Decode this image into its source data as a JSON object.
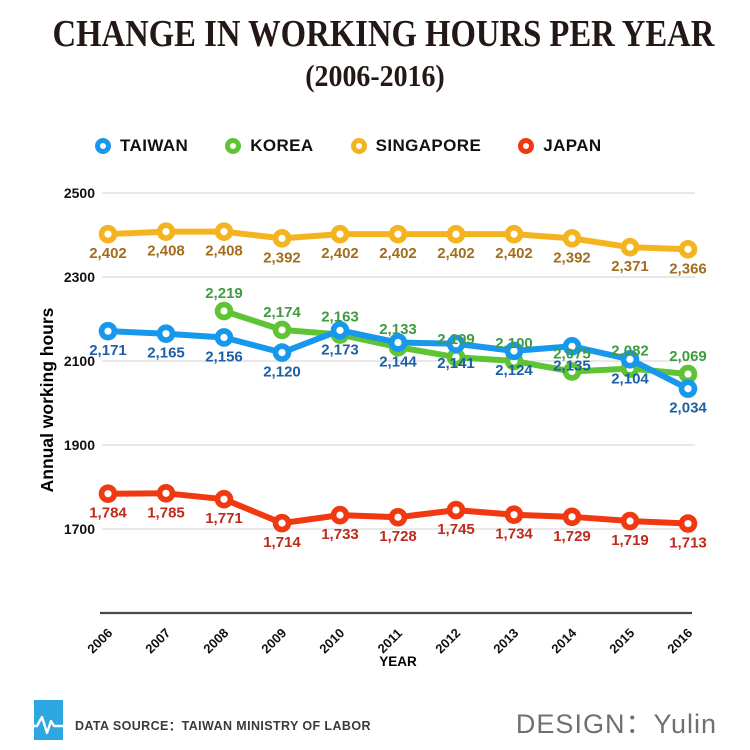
{
  "title": "CHANGE IN WORKING HOURS PER YEAR",
  "subtitle": "(2006-2016)",
  "colors": {
    "title": "#231815",
    "gridline": "#d9d9d9",
    "axis_line": "#4a4a4a",
    "tick_text": "#111111",
    "footer_icon": "#2ea7e0",
    "design_text": "#717071"
  },
  "chart_data": {
    "type": "line",
    "x": [
      "2006",
      "2007",
      "2008",
      "2009",
      "2010",
      "2011",
      "2012",
      "2013",
      "2014",
      "2015",
      "2016"
    ],
    "xlabel": "YEAR",
    "ylabel": "Annual working hours",
    "yticks": [
      2500,
      2300,
      2100,
      1900,
      1700
    ],
    "ylim": [
      1500,
      2500
    ],
    "grid": true,
    "legend_position": "top",
    "series": [
      {
        "name": "TAIWAN",
        "color": "#1898ec",
        "label_color": "#1d5fa6",
        "label_pos": "below",
        "values": [
          2171,
          2165,
          2156,
          2120,
          2173,
          2144,
          2141,
          2124,
          2135,
          2104,
          2034
        ]
      },
      {
        "name": "KOREA",
        "color": "#5ec434",
        "label_color": "#3f9c40",
        "label_pos": "above",
        "values": [
          null,
          null,
          2219,
          2174,
          2163,
          2133,
          2109,
          2100,
          2075,
          2082,
          2069
        ]
      },
      {
        "name": "SINGAPORE",
        "color": "#f4b41f",
        "label_color": "#a26d1e",
        "label_pos": "below",
        "values": [
          2402,
          2408,
          2408,
          2392,
          2402,
          2402,
          2402,
          2402,
          2392,
          2371,
          2366
        ]
      },
      {
        "name": "JAPAN",
        "color": "#f13911",
        "label_color": "#be2a1b",
        "label_pos": "below",
        "values": [
          1784,
          1785,
          1771,
          1714,
          1733,
          1728,
          1745,
          1734,
          1729,
          1719,
          1713
        ]
      }
    ]
  },
  "footer": {
    "data_source": "DATA SOURCE：TAIWAN MINISTRY OF LABOR",
    "design": "DESIGN：Yulin",
    "icon": "pulse-icon"
  }
}
